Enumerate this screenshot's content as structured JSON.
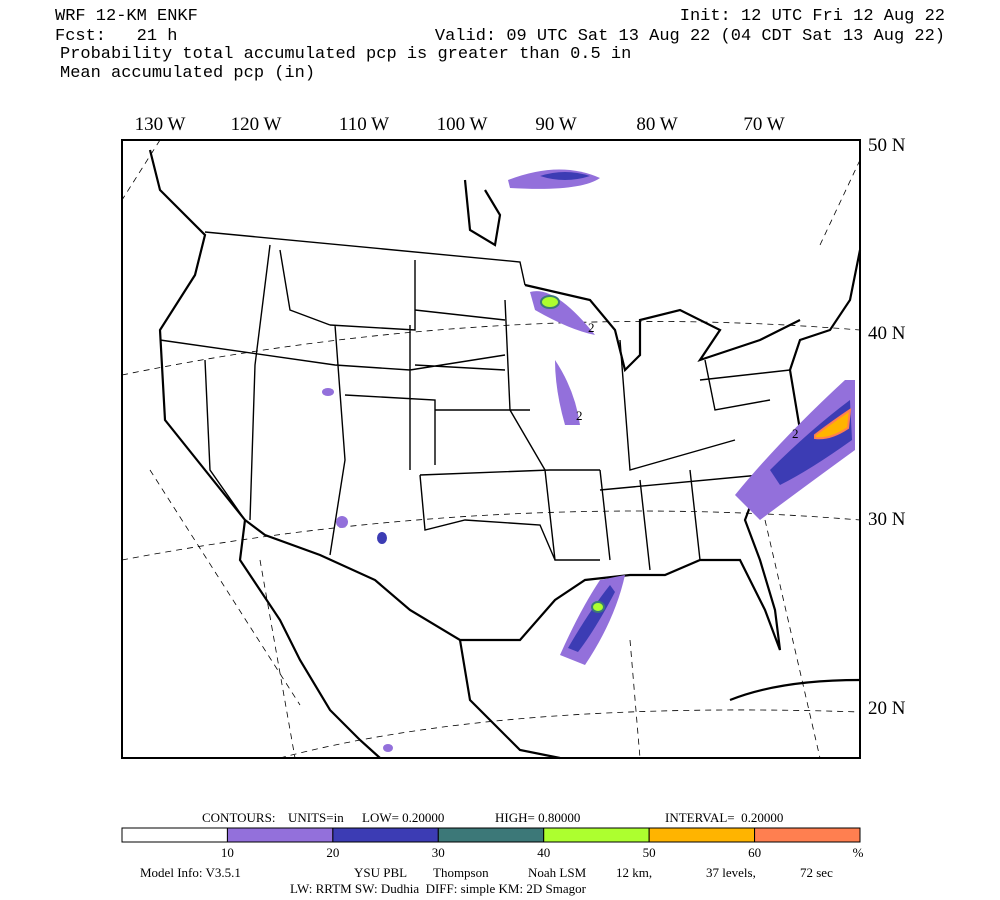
{
  "header": {
    "model": "WRF 12-KM ENKF",
    "init": "Init: 12 UTC Fri 12 Aug 22",
    "fcst": "Fcst:   21 h",
    "valid": "Valid: 09 UTC Sat 13 Aug 22 (04 CDT Sat 13 Aug 22)",
    "line3": "Probability total accumulated pcp is greater than 0.5 in",
    "line4": "Mean accumulated pcp (in)"
  },
  "map": {
    "lon_labels": [
      "130 W",
      "120 W",
      "110 W",
      "100 W",
      "90 W",
      "80 W",
      "70 W"
    ],
    "lat_labels": [
      "50 N",
      "40 N",
      "30 N",
      "20 N"
    ],
    "contour_labels": [
      "2",
      "2",
      "2"
    ]
  },
  "contours": {
    "label": "CONTOURS:",
    "units": "UNITS=in",
    "low": "LOW= 0.20000",
    "high": "HIGH= 0.80000",
    "interval": "INTERVAL=  0.20000"
  },
  "colorbar": {
    "colors": [
      "#ffffff",
      "#9370db",
      "#3c3cb4",
      "#3c7878",
      "#adff2f",
      "#ffb400",
      "#ff7f50"
    ],
    "labels": [
      "10",
      "20",
      "30",
      "40",
      "50",
      "60",
      "%"
    ]
  },
  "footer": {
    "model_info": "Model Info: V3.5.1",
    "pbl": "YSU PBL",
    "mp": "Thompson",
    "lsm": "Noah LSM",
    "res": "12 km,",
    "levels": "37 levels,",
    "dt": "72 sec",
    "line2": "LW: RRTM SW: Dudhia  DIFF: simple KM: 2D Smagor"
  }
}
